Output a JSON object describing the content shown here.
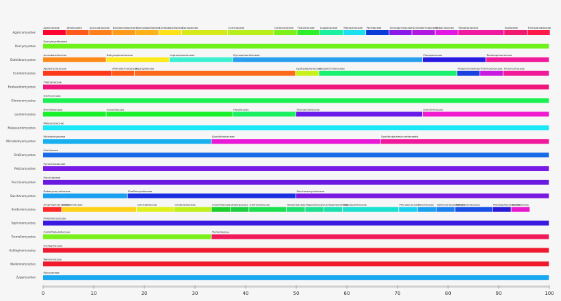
{
  "chart_data": {
    "type": "bar",
    "orientation": "horizontal-stacked",
    "xlim": [
      0,
      100
    ],
    "xticks": [
      0,
      10,
      20,
      30,
      40,
      50,
      60,
      70,
      80,
      90,
      100
    ],
    "grid": false,
    "rows": [
      {
        "label": "Agaricomycetes",
        "segments": [
          {
            "name": "Agaricaceae",
            "value": 4.6,
            "color": "#ff0033"
          },
          {
            "name": "Atheliaceae",
            "value": 4.5,
            "color": "#ff5a1a"
          },
          {
            "name": "Auriculariaceae",
            "value": 4.6,
            "color": "#ff7f1a"
          },
          {
            "name": "Bondarzewiaceae",
            "value": 4.6,
            "color": "#ff9a1a"
          },
          {
            "name": "Botryobasidiaceae",
            "value": 4.6,
            "color": "#ffb21a"
          },
          {
            "name": "Ceratobasidiaceae",
            "value": 4.5,
            "color": "#ffe21a"
          },
          {
            "name": "Coniolaceae",
            "value": 9.1,
            "color": "#d6ea1a"
          },
          {
            "name": "Corticiaceae",
            "value": 9.1,
            "color": "#b8ef1a"
          },
          {
            "name": "Cortinariaceae",
            "value": 4.6,
            "color": "#7ef01a"
          },
          {
            "name": "Fistulinaceae",
            "value": 4.5,
            "color": "#2ef02a"
          },
          {
            "name": "Isaplanaceae",
            "value": 4.6,
            "color": "#1af0a0"
          },
          {
            "name": "Marasmiaceae",
            "value": 4.5,
            "color": "#1ae0f0"
          },
          {
            "name": "Peniltaceae",
            "value": 4.6,
            "color": "#0a3ad8"
          },
          {
            "name": "Schizophyllaceae",
            "value": 4.5,
            "color": "#8a1ae8"
          },
          {
            "name": "Sclerodermataceae",
            "value": 4.6,
            "color": "#b01ae0"
          },
          {
            "name": "Sebacinaceae",
            "value": 4.5,
            "color": "#e01ae0"
          },
          {
            "name": "Strophariaceae",
            "value": 9.1,
            "color": "#f01aa0"
          },
          {
            "name": "Suillaceae",
            "value": 4.6,
            "color": "#f01a70"
          },
          {
            "name": "Tricholomataceae",
            "value": 4.5,
            "color": "#ff1a4a"
          }
        ]
      },
      {
        "label": "Dacrymycetes",
        "segments": [
          {
            "name": "Dacrymycetaceae",
            "value": 100,
            "color": "#6ef01a"
          }
        ]
      },
      {
        "label": "Dothideomycetes",
        "segments": [
          {
            "name": "Aureobasidiaceae",
            "value": 12.5,
            "color": "#ff8a1a"
          },
          {
            "name": "Botryosphaeriaceae",
            "value": 12.5,
            "color": "#ffea1a"
          },
          {
            "name": "Leptosphaeriaceae",
            "value": 12.5,
            "color": "#3af0d0"
          },
          {
            "name": "Mycosphaerellaceae",
            "value": 37.5,
            "color": "#2a9ff0"
          },
          {
            "name": "Pleosporaceae",
            "value": 12.5,
            "color": "#2a1ae0"
          },
          {
            "name": "Teratosphaeriaceae",
            "value": 12.5,
            "color": "#f01a9a"
          }
        ]
      },
      {
        "label": "Eurotiomycetes",
        "segments": [
          {
            "name": "Ajellomycetaceae",
            "value": 13.6,
            "color": "#ff3a1a"
          },
          {
            "name": "Arthrodermataceae",
            "value": 4.5,
            "color": "#ff5a1a"
          },
          {
            "name": "Aspergillaceae",
            "value": 31.8,
            "color": "#ff6a1a"
          },
          {
            "name": "Cyphellophoraceae",
            "value": 4.6,
            "color": "#c8f01a"
          },
          {
            "name": "Herpotrichiellaceae",
            "value": 27.3,
            "color": "#1af070"
          },
          {
            "name": "Phaeomoniellales",
            "value": 4.5,
            "color": "#1a40e0"
          },
          {
            "name": "Thermoascaceae",
            "value": 4.6,
            "color": "#c81ae0"
          },
          {
            "name": "Trichocomaceae",
            "value": 9.1,
            "color": "#f01a9a"
          }
        ]
      },
      {
        "label": "Exobasidiomycetes",
        "segments": [
          {
            "name": "Tilletiariaceae",
            "value": 100,
            "color": "#f0157a"
          }
        ]
      },
      {
        "label": "Glomeromycetes",
        "segments": [
          {
            "name": "Glomeraceae",
            "value": 100,
            "color": "#1af050"
          }
        ]
      },
      {
        "label": "Leotiomycetes",
        "segments": [
          {
            "name": "Dermateaceae",
            "value": 12.5,
            "color": "#1af02a"
          },
          {
            "name": "Erysiphaceae",
            "value": 25,
            "color": "#1af02a"
          },
          {
            "name": "Helotiaceae",
            "value": 12.5,
            "color": "#1af060"
          },
          {
            "name": "Pseudeurotiaceae",
            "value": 25,
            "color": "#6a1ae8"
          },
          {
            "name": "Sclerotiniaceae",
            "value": 25,
            "color": "#f01ad0"
          }
        ]
      },
      {
        "label": "Malasseziomycetes",
        "segments": [
          {
            "name": "Malasseziaceae",
            "value": 100,
            "color": "#1ae8f8"
          }
        ]
      },
      {
        "label": "Microbotryomycetes",
        "segments": [
          {
            "name": "Microbotryaceae",
            "value": 33.3,
            "color": "#1ab0f0"
          },
          {
            "name": "Sporidiobolaceae",
            "value": 33.4,
            "color": "#e81ad8"
          },
          {
            "name": "Sporidiobolalesincertaesedis",
            "value": 33.3,
            "color": "#f01a9a"
          }
        ]
      },
      {
        "label": "Orbiliomycetes",
        "segments": [
          {
            "name": "Orbiliaceae",
            "value": 100,
            "color": "#1a6ae8"
          }
        ]
      },
      {
        "label": "Pezizomycetes",
        "segments": [
          {
            "name": "Pyronemataceae",
            "value": 100,
            "color": "#7a1ae8"
          }
        ]
      },
      {
        "label": "Pucciniomycetes",
        "segments": [
          {
            "name": "Pucciniaceae",
            "value": 100,
            "color": "#6a1ae0"
          }
        ]
      },
      {
        "label": "Saccharomycetes",
        "segments": [
          {
            "name": "Debaryomycetaceae",
            "value": 16.7,
            "color": "#1aa0f0"
          },
          {
            "name": "Phaffomycetaceae",
            "value": 33.3,
            "color": "#1a30e0"
          },
          {
            "name": "Saccharomycetaceae",
            "value": 50,
            "color": "#7a1ae0"
          }
        ]
      },
      {
        "label": "Sordariomycetes",
        "segments": [
          {
            "name": "Amphisphaeriaceae",
            "value": 3.7,
            "color": "#ff2a2a"
          },
          {
            "name": "Chaetomiaceae",
            "value": 14.8,
            "color": "#ffd21a"
          },
          {
            "name": "Clavicipitaceae",
            "value": 7.4,
            "color": "#e0f01a"
          },
          {
            "name": "Cordycipitaceae",
            "value": 7.4,
            "color": "#c0f01a"
          },
          {
            "name": "Crypmitaceae",
            "value": 3.7,
            "color": "#1ad02a"
          },
          {
            "name": "Diatrypaceae",
            "value": 3.7,
            "color": "#1ad040"
          },
          {
            "name": "Glomerellaceae",
            "value": 7.4,
            "color": "#1ae050"
          },
          {
            "name": "Hypocreaceae",
            "value": 3.7,
            "color": "#1ae070"
          },
          {
            "name": "Hypoxylaceae",
            "value": 3.7,
            "color": "#1ae090"
          },
          {
            "name": "Lasiosphaeriaceae",
            "value": 3.7,
            "color": "#1ae0b0"
          },
          {
            "name": "Magnaporthaceae",
            "value": 11.1,
            "color": "#1ae0d0"
          },
          {
            "name": "Microascaceae",
            "value": 3.7,
            "color": "#1ad0f0"
          },
          {
            "name": "Nectriaceae",
            "value": 3.7,
            "color": "#1aa0f0"
          },
          {
            "name": "Ophiocordycipitaceae",
            "value": 3.7,
            "color": "#1a80f0"
          },
          {
            "name": "Ophiostomataceae",
            "value": 7.4,
            "color": "#1a50e8"
          },
          {
            "name": "Plectosphaerellaceae",
            "value": 3.7,
            "color": "#2a1ad8"
          },
          {
            "name": "Sordariaceae",
            "value": 3.7,
            "color": "#e81ad0"
          }
        ]
      },
      {
        "label": "Taphrinomycetes",
        "segments": [
          {
            "name": "Protomycetaceae",
            "value": 100,
            "color": "#3a1ae0"
          }
        ]
      },
      {
        "label": "Tremellomycetes",
        "segments": [
          {
            "name": "Cystofilobasidiaceae",
            "value": 33.3,
            "color": "#7af01a"
          },
          {
            "name": "Tremellaceae",
            "value": 66.7,
            "color": "#f01a5a"
          }
        ]
      },
      {
        "label": "Ustilaginomycetes",
        "segments": [
          {
            "name": "Ustilaginaceae",
            "value": 100,
            "color": "#f01a30"
          }
        ]
      },
      {
        "label": "Wallemiomycetes",
        "segments": [
          {
            "name": "Wallemiaceae",
            "value": 100,
            "color": "#f01a2a"
          }
        ]
      },
      {
        "label": "Zygomycetes",
        "segments": [
          {
            "name": "Mucoraceae",
            "value": 100,
            "color": "#1aa8f0"
          }
        ]
      }
    ]
  }
}
